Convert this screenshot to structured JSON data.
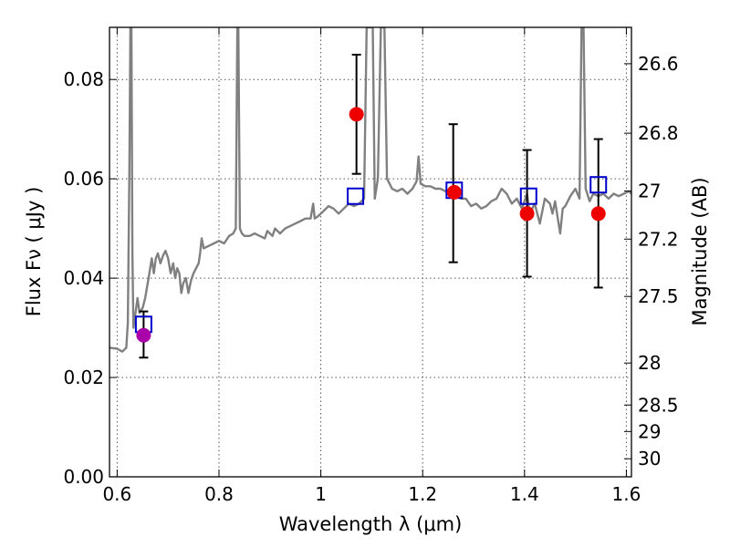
{
  "chart_data": {
    "type": "scatter",
    "xlabel": "Wavelength  λ (μm)",
    "ylabel": "Flux  Fν  ( μJy )",
    "y2label": "Magnitude (AB)",
    "xlim": [
      0.585,
      1.61
    ],
    "ylim": [
      0.0,
      0.0905
    ],
    "xticks": [
      0.6,
      0.8,
      1.0,
      1.2,
      1.4,
      1.6
    ],
    "xtick_labels": [
      "0.6",
      "0.8",
      "1",
      "1.2",
      "1.4",
      "1.6"
    ],
    "yticks": [
      0.0,
      0.02,
      0.04,
      0.06,
      0.08
    ],
    "ytick_labels": [
      "0.00",
      "0.02",
      "0.04",
      "0.06",
      "0.08"
    ],
    "y2ticks": [
      26.6,
      26.8,
      27.0,
      27.2,
      27.5,
      28.0,
      28.5,
      29.0,
      30.0
    ],
    "y2tick_labels": [
      "26.6",
      "26.8",
      "27",
      "27.2",
      "27.5",
      "28",
      "28.5",
      "29",
      "30"
    ],
    "grid": true,
    "series": [
      {
        "kind": "line",
        "color": "#808080",
        "points": [
          [
            0.585,
            0.026
          ],
          [
            0.6,
            0.0258
          ],
          [
            0.61,
            0.0252
          ],
          [
            0.618,
            0.026
          ],
          [
            0.621,
            0.031
          ],
          [
            0.624,
            0.062
          ],
          [
            0.626,
            0.0905
          ],
          [
            0.628,
            0.0905
          ],
          [
            0.63,
            0.045
          ],
          [
            0.632,
            0.03
          ],
          [
            0.636,
            0.033
          ],
          [
            0.64,
            0.036
          ],
          [
            0.644,
            0.033
          ],
          [
            0.65,
            0.034
          ],
          [
            0.655,
            0.036
          ],
          [
            0.66,
            0.039
          ],
          [
            0.665,
            0.042
          ],
          [
            0.668,
            0.044
          ],
          [
            0.672,
            0.041
          ],
          [
            0.676,
            0.044
          ],
          [
            0.68,
            0.045
          ],
          [
            0.685,
            0.043
          ],
          [
            0.69,
            0.0445
          ],
          [
            0.695,
            0.0455
          ],
          [
            0.7,
            0.044
          ],
          [
            0.705,
            0.041
          ],
          [
            0.71,
            0.043
          ],
          [
            0.714,
            0.04
          ],
          [
            0.718,
            0.042
          ],
          [
            0.722,
            0.041
          ],
          [
            0.726,
            0.037
          ],
          [
            0.73,
            0.039
          ],
          [
            0.735,
            0.04
          ],
          [
            0.74,
            0.037
          ],
          [
            0.745,
            0.0395
          ],
          [
            0.75,
            0.041
          ],
          [
            0.755,
            0.042
          ],
          [
            0.76,
            0.043
          ],
          [
            0.763,
            0.045
          ],
          [
            0.766,
            0.048
          ],
          [
            0.77,
            0.046
          ],
          [
            0.78,
            0.0465
          ],
          [
            0.79,
            0.047
          ],
          [
            0.8,
            0.0475
          ],
          [
            0.81,
            0.047
          ],
          [
            0.82,
            0.0485
          ],
          [
            0.828,
            0.049
          ],
          [
            0.833,
            0.05
          ],
          [
            0.836,
            0.0905
          ],
          [
            0.838,
            0.0905
          ],
          [
            0.841,
            0.05
          ],
          [
            0.845,
            0.049
          ],
          [
            0.85,
            0.0485
          ],
          [
            0.86,
            0.0485
          ],
          [
            0.87,
            0.049
          ],
          [
            0.88,
            0.0485
          ],
          [
            0.89,
            0.048
          ],
          [
            0.895,
            0.0495
          ],
          [
            0.9,
            0.049
          ],
          [
            0.905,
            0.0485
          ],
          [
            0.91,
            0.05
          ],
          [
            0.92,
            0.049
          ],
          [
            0.93,
            0.05
          ],
          [
            0.94,
            0.0505
          ],
          [
            0.95,
            0.051
          ],
          [
            0.96,
            0.0515
          ],
          [
            0.97,
            0.052
          ],
          [
            0.98,
            0.052
          ],
          [
            0.985,
            0.055
          ],
          [
            0.988,
            0.052
          ],
          [
            0.995,
            0.0525
          ],
          [
            1.005,
            0.0535
          ],
          [
            1.015,
            0.0545
          ],
          [
            1.025,
            0.054
          ],
          [
            1.035,
            0.053
          ],
          [
            1.045,
            0.054
          ],
          [
            1.055,
            0.055
          ],
          [
            1.065,
            0.0545
          ],
          [
            1.075,
            0.055
          ],
          [
            1.085,
            0.056
          ],
          [
            1.09,
            0.0905
          ],
          [
            1.102,
            0.0905
          ],
          [
            1.106,
            0.056
          ],
          [
            1.112,
            0.06
          ],
          [
            1.118,
            0.0905
          ],
          [
            1.125,
            0.0905
          ],
          [
            1.13,
            0.06
          ],
          [
            1.14,
            0.058
          ],
          [
            1.15,
            0.0575
          ],
          [
            1.16,
            0.058
          ],
          [
            1.17,
            0.057
          ],
          [
            1.18,
            0.058
          ],
          [
            1.188,
            0.0595
          ],
          [
            1.192,
            0.0645
          ],
          [
            1.196,
            0.059
          ],
          [
            1.205,
            0.0585
          ],
          [
            1.215,
            0.0585
          ],
          [
            1.225,
            0.058
          ],
          [
            1.235,
            0.058
          ],
          [
            1.245,
            0.0575
          ],
          [
            1.255,
            0.057
          ],
          [
            1.265,
            0.0575
          ],
          [
            1.275,
            0.056
          ],
          [
            1.285,
            0.056
          ],
          [
            1.295,
            0.0545
          ],
          [
            1.305,
            0.055
          ],
          [
            1.315,
            0.054
          ],
          [
            1.325,
            0.0545
          ],
          [
            1.335,
            0.0555
          ],
          [
            1.345,
            0.056
          ],
          [
            1.355,
            0.058
          ],
          [
            1.365,
            0.057
          ],
          [
            1.375,
            0.055
          ],
          [
            1.385,
            0.056
          ],
          [
            1.395,
            0.054
          ],
          [
            1.405,
            0.057
          ],
          [
            1.41,
            0.053
          ],
          [
            1.42,
            0.055
          ],
          [
            1.43,
            0.051
          ],
          [
            1.44,
            0.056
          ],
          [
            1.45,
            0.055
          ],
          [
            1.455,
            0.053
          ],
          [
            1.46,
            0.0555
          ],
          [
            1.47,
            0.049
          ],
          [
            1.475,
            0.054
          ],
          [
            1.48,
            0.0545
          ],
          [
            1.49,
            0.0565
          ],
          [
            1.5,
            0.058
          ],
          [
            1.508,
            0.056
          ],
          [
            1.512,
            0.0905
          ],
          [
            1.516,
            0.0905
          ],
          [
            1.52,
            0.058
          ],
          [
            1.528,
            0.0555
          ],
          [
            1.535,
            0.057
          ],
          [
            1.545,
            0.0565
          ],
          [
            1.555,
            0.057
          ],
          [
            1.565,
            0.056
          ],
          [
            1.575,
            0.057
          ],
          [
            1.585,
            0.0565
          ],
          [
            1.595,
            0.057
          ],
          [
            1.605,
            0.0575
          ],
          [
            1.61,
            0.057
          ]
        ]
      },
      {
        "kind": "errorbar",
        "color": "#000000",
        "points": [
          {
            "x": 0.652,
            "y": 0.0285,
            "ylow": 0.024,
            "yhigh": 0.0333
          },
          {
            "x": 1.07,
            "y": 0.073,
            "ylow": 0.061,
            "yhigh": 0.085
          },
          {
            "x": 1.26,
            "y": 0.057,
            "ylow": 0.0432,
            "yhigh": 0.071
          },
          {
            "x": 1.405,
            "y": 0.053,
            "ylow": 0.0403,
            "yhigh": 0.0658
          },
          {
            "x": 1.545,
            "y": 0.053,
            "ylow": 0.0381,
            "yhigh": 0.068
          }
        ]
      },
      {
        "kind": "square",
        "color": "#0000cc",
        "points": [
          [
            0.652,
            0.0307
          ],
          [
            1.068,
            0.0565
          ],
          [
            1.262,
            0.0577
          ],
          [
            1.408,
            0.0565
          ],
          [
            1.545,
            0.0588
          ]
        ]
      },
      {
        "kind": "circle",
        "colors": [
          "#aa00aa",
          "#ee0000",
          "#ee0000",
          "#ee0000",
          "#ee0000"
        ],
        "points": [
          [
            0.652,
            0.0285
          ],
          [
            1.07,
            0.073
          ],
          [
            1.262,
            0.0573
          ],
          [
            1.405,
            0.053
          ],
          [
            1.545,
            0.053
          ]
        ]
      }
    ]
  }
}
